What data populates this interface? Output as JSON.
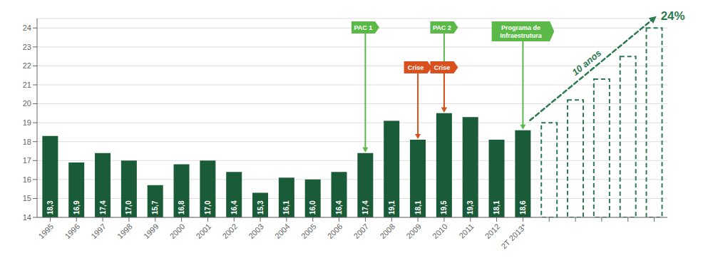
{
  "chart_data": {
    "type": "bar",
    "categories": [
      "1995",
      "1996",
      "1997",
      "1998",
      "1999",
      "2000",
      "2001",
      "2002",
      "2003",
      "2004",
      "2005",
      "2006",
      "2007",
      "2008",
      "2009",
      "2010",
      "2011",
      "2012",
      "2T 2013*",
      null,
      null,
      null,
      null,
      null
    ],
    "series": [
      {
        "color": "#1a5c38",
        "values": [
          18.3,
          16.9,
          17.4,
          17.0,
          15.7,
          16.8,
          17.0,
          16.4,
          15.3,
          16.1,
          16.0,
          16.4,
          17.4,
          19.1,
          18.1,
          19.5,
          19.3,
          18.1,
          18.6,
          null,
          null,
          null,
          null,
          null
        ],
        "value_labels": [
          "18,3",
          "16,9",
          "17,4",
          "17,0",
          "15,7",
          "16,8",
          "17,0",
          "16,4",
          "15,3",
          "16,1",
          "16,0",
          "16,4",
          "17,4",
          "19,1",
          "18,1",
          "19,5",
          "19,3",
          "18,1",
          "18,6",
          null,
          null,
          null,
          null,
          null
        ]
      },
      {
        "color": "#2d7a50",
        "line_style": "dashed",
        "values": [
          null,
          null,
          null,
          null,
          null,
          null,
          null,
          null,
          null,
          null,
          null,
          null,
          null,
          null,
          null,
          null,
          null,
          null,
          null,
          19.0,
          20.2,
          21.3,
          22.5,
          24.0
        ]
      }
    ],
    "ylim": [
      14,
      24.5
    ],
    "yticks": [
      14,
      15,
      16,
      17,
      18,
      19,
      20,
      21,
      22,
      23,
      24
    ],
    "grid": true,
    "data_labels": true,
    "flags": [
      {
        "text": "PAC 1",
        "index": 12,
        "color": "#5bba47"
      },
      {
        "text": "PAC 2",
        "index": 15,
        "color": "#5bba47"
      },
      {
        "text": "Crise",
        "index": 14,
        "color": "#d94f1e"
      },
      {
        "text": "Crise",
        "index": 15,
        "color": "#d94f1e"
      },
      {
        "text": "Programa de\nInfraestrutura",
        "index": 18,
        "color": "#5bba47"
      }
    ],
    "trend": {
      "label": "10 anos",
      "from_index": 18,
      "to_index": 23,
      "color": "#2d7a50",
      "line_style": "dashed",
      "end_label": {
        "text": "24%",
        "value": 24
      }
    }
  }
}
